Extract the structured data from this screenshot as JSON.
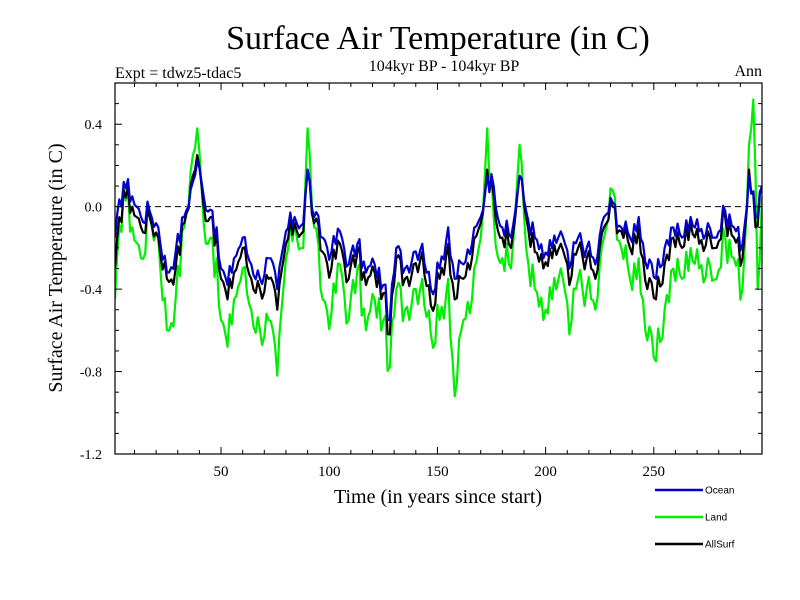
{
  "chart_data": {
    "type": "line",
    "title": "Surface Air Temperature (in C)",
    "subtitle": "104kyr BP - 104kyr BP",
    "left_label": "Expt = tdwz5-tdac5",
    "right_label": "Ann",
    "xlabel": "Time (in years since start)",
    "ylabel": "Surface Air Temperature (in C)",
    "xlim": [
      1,
      300
    ],
    "ylim": [
      -1.2,
      0.6
    ],
    "x_ticks": [
      50,
      100,
      150,
      200,
      250
    ],
    "y_ticks": [
      -1.2,
      -0.8,
      -0.4,
      0.0,
      0.4
    ],
    "y_tick_labels": [
      "-1.2",
      "-0.8",
      "-0.4",
      "0.0",
      "0.4"
    ],
    "zero_line": "dashed",
    "grid": false,
    "legend_position": "bottom-right",
    "series": [
      {
        "name": "Ocean",
        "color": "#0000cc",
        "control_points": [
          [
            1,
            -0.15
          ],
          [
            5,
            0.12
          ],
          [
            9,
            0.05
          ],
          [
            13,
            -0.05
          ],
          [
            17,
            -0.02
          ],
          [
            21,
            -0.1
          ],
          [
            25,
            -0.32
          ],
          [
            29,
            -0.22
          ],
          [
            33,
            -0.05
          ],
          [
            37,
            0.12
          ],
          [
            39,
            0.22
          ],
          [
            42,
            0.05
          ],
          [
            46,
            -0.02
          ],
          [
            50,
            -0.3
          ],
          [
            53,
            -0.38
          ],
          [
            56,
            -0.25
          ],
          [
            60,
            -0.15
          ],
          [
            64,
            -0.28
          ],
          [
            68,
            -0.35
          ],
          [
            72,
            -0.25
          ],
          [
            76,
            -0.4
          ],
          [
            80,
            -0.12
          ],
          [
            84,
            -0.05
          ],
          [
            88,
            -0.08
          ],
          [
            90,
            0.18
          ],
          [
            93,
            -0.05
          ],
          [
            97,
            -0.15
          ],
          [
            101,
            -0.22
          ],
          [
            105,
            -0.12
          ],
          [
            109,
            -0.28
          ],
          [
            113,
            -0.18
          ],
          [
            117,
            -0.32
          ],
          [
            121,
            -0.28
          ],
          [
            125,
            -0.38
          ],
          [
            128,
            -0.55
          ],
          [
            131,
            -0.2
          ],
          [
            135,
            -0.3
          ],
          [
            139,
            -0.22
          ],
          [
            143,
            -0.18
          ],
          [
            147,
            -0.4
          ],
          [
            151,
            -0.3
          ],
          [
            155,
            -0.1
          ],
          [
            158,
            -0.35
          ],
          [
            162,
            -0.28
          ],
          [
            166,
            -0.18
          ],
          [
            170,
            -0.05
          ],
          [
            173,
            0.15
          ],
          [
            176,
            0.1
          ],
          [
            180,
            -0.1
          ],
          [
            184,
            -0.15
          ],
          [
            188,
            0.15
          ],
          [
            191,
            -0.02
          ],
          [
            195,
            -0.15
          ],
          [
            199,
            -0.25
          ],
          [
            203,
            -0.2
          ],
          [
            207,
            -0.12
          ],
          [
            211,
            -0.3
          ],
          [
            215,
            -0.15
          ],
          [
            219,
            -0.2
          ],
          [
            223,
            -0.28
          ],
          [
            227,
            -0.05
          ],
          [
            231,
            0.02
          ],
          [
            235,
            -0.1
          ],
          [
            239,
            -0.15
          ],
          [
            243,
            -0.05
          ],
          [
            247,
            -0.3
          ],
          [
            251,
            -0.35
          ],
          [
            255,
            -0.2
          ],
          [
            259,
            -0.1
          ],
          [
            263,
            -0.15
          ],
          [
            267,
            -0.05
          ],
          [
            271,
            -0.12
          ],
          [
            275,
            -0.08
          ],
          [
            279,
            -0.15
          ],
          [
            283,
            -0.02
          ],
          [
            287,
            -0.1
          ],
          [
            291,
            -0.18
          ],
          [
            294,
            0.15
          ],
          [
            297,
            -0.05
          ],
          [
            300,
            0.1
          ]
        ]
      },
      {
        "name": "Land",
        "color": "#00ee00",
        "control_points": [
          [
            1,
            -0.45
          ],
          [
            5,
            0.1
          ],
          [
            9,
            -0.1
          ],
          [
            13,
            -0.25
          ],
          [
            17,
            -0.05
          ],
          [
            21,
            -0.15
          ],
          [
            25,
            -0.6
          ],
          [
            29,
            -0.45
          ],
          [
            33,
            -0.1
          ],
          [
            37,
            0.25
          ],
          [
            39,
            0.38
          ],
          [
            42,
            -0.08
          ],
          [
            46,
            -0.15
          ],
          [
            50,
            -0.55
          ],
          [
            53,
            -0.68
          ],
          [
            56,
            -0.45
          ],
          [
            60,
            -0.3
          ],
          [
            64,
            -0.5
          ],
          [
            68,
            -0.6
          ],
          [
            72,
            -0.55
          ],
          [
            76,
            -0.82
          ],
          [
            80,
            -0.25
          ],
          [
            84,
            -0.08
          ],
          [
            88,
            -0.2
          ],
          [
            90,
            0.38
          ],
          [
            93,
            -0.1
          ],
          [
            97,
            -0.45
          ],
          [
            101,
            -0.52
          ],
          [
            105,
            -0.28
          ],
          [
            109,
            -0.55
          ],
          [
            113,
            -0.3
          ],
          [
            117,
            -0.6
          ],
          [
            121,
            -0.45
          ],
          [
            125,
            -0.55
          ],
          [
            128,
            -0.78
          ],
          [
            131,
            -0.4
          ],
          [
            135,
            -0.5
          ],
          [
            139,
            -0.4
          ],
          [
            143,
            -0.35
          ],
          [
            147,
            -0.62
          ],
          [
            151,
            -0.55
          ],
          [
            155,
            -0.35
          ],
          [
            158,
            -0.92
          ],
          [
            162,
            -0.55
          ],
          [
            166,
            -0.45
          ],
          [
            170,
            -0.15
          ],
          [
            173,
            0.38
          ],
          [
            176,
            -0.05
          ],
          [
            180,
            -0.25
          ],
          [
            184,
            -0.3
          ],
          [
            188,
            0.3
          ],
          [
            191,
            -0.2
          ],
          [
            195,
            -0.4
          ],
          [
            199,
            -0.55
          ],
          [
            203,
            -0.45
          ],
          [
            207,
            -0.3
          ],
          [
            211,
            -0.62
          ],
          [
            215,
            -0.35
          ],
          [
            219,
            -0.4
          ],
          [
            223,
            -0.5
          ],
          [
            227,
            -0.15
          ],
          [
            231,
            0.08
          ],
          [
            235,
            -0.2
          ],
          [
            239,
            -0.35
          ],
          [
            243,
            -0.25
          ],
          [
            247,
            -0.65
          ],
          [
            251,
            -0.75
          ],
          [
            255,
            -0.5
          ],
          [
            259,
            -0.3
          ],
          [
            263,
            -0.35
          ],
          [
            267,
            -0.2
          ],
          [
            271,
            -0.3
          ],
          [
            275,
            -0.25
          ],
          [
            279,
            -0.35
          ],
          [
            283,
            -0.15
          ],
          [
            287,
            -0.25
          ],
          [
            291,
            -0.4
          ],
          [
            294,
            0.3
          ],
          [
            296,
            0.52
          ],
          [
            298,
            -0.4
          ],
          [
            300,
            0.05
          ]
        ]
      },
      {
        "name": "AllSurf",
        "color": "#000000",
        "control_points": [
          [
            1,
            -0.3
          ],
          [
            5,
            0.08
          ],
          [
            9,
            0.0
          ],
          [
            13,
            -0.1
          ],
          [
            17,
            -0.05
          ],
          [
            21,
            -0.15
          ],
          [
            25,
            -0.35
          ],
          [
            29,
            -0.3
          ],
          [
            33,
            -0.08
          ],
          [
            37,
            0.15
          ],
          [
            39,
            0.25
          ],
          [
            42,
            0.0
          ],
          [
            46,
            -0.05
          ],
          [
            50,
            -0.35
          ],
          [
            53,
            -0.45
          ],
          [
            56,
            -0.32
          ],
          [
            60,
            -0.2
          ],
          [
            64,
            -0.35
          ],
          [
            68,
            -0.4
          ],
          [
            72,
            -0.35
          ],
          [
            76,
            -0.5
          ],
          [
            80,
            -0.18
          ],
          [
            84,
            -0.08
          ],
          [
            88,
            -0.12
          ],
          [
            90,
            0.18
          ],
          [
            93,
            -0.08
          ],
          [
            97,
            -0.22
          ],
          [
            101,
            -0.3
          ],
          [
            105,
            -0.18
          ],
          [
            109,
            -0.35
          ],
          [
            113,
            -0.22
          ],
          [
            117,
            -0.38
          ],
          [
            121,
            -0.32
          ],
          [
            125,
            -0.42
          ],
          [
            128,
            -0.62
          ],
          [
            131,
            -0.25
          ],
          [
            135,
            -0.35
          ],
          [
            139,
            -0.28
          ],
          [
            143,
            -0.22
          ],
          [
            147,
            -0.48
          ],
          [
            151,
            -0.35
          ],
          [
            155,
            -0.18
          ],
          [
            158,
            -0.45
          ],
          [
            162,
            -0.35
          ],
          [
            166,
            -0.25
          ],
          [
            170,
            -0.08
          ],
          [
            173,
            0.18
          ],
          [
            176,
            0.05
          ],
          [
            180,
            -0.15
          ],
          [
            184,
            -0.2
          ],
          [
            188,
            0.15
          ],
          [
            191,
            -0.05
          ],
          [
            195,
            -0.22
          ],
          [
            199,
            -0.3
          ],
          [
            203,
            -0.25
          ],
          [
            207,
            -0.18
          ],
          [
            211,
            -0.38
          ],
          [
            215,
            -0.2
          ],
          [
            219,
            -0.25
          ],
          [
            223,
            -0.35
          ],
          [
            227,
            -0.1
          ],
          [
            231,
            0.0
          ],
          [
            235,
            -0.12
          ],
          [
            239,
            -0.2
          ],
          [
            243,
            -0.1
          ],
          [
            247,
            -0.4
          ],
          [
            251,
            -0.45
          ],
          [
            255,
            -0.28
          ],
          [
            259,
            -0.15
          ],
          [
            263,
            -0.2
          ],
          [
            267,
            -0.08
          ],
          [
            271,
            -0.18
          ],
          [
            275,
            -0.12
          ],
          [
            279,
            -0.2
          ],
          [
            283,
            -0.05
          ],
          [
            287,
            -0.15
          ],
          [
            291,
            -0.25
          ],
          [
            294,
            0.18
          ],
          [
            297,
            -0.1
          ],
          [
            300,
            0.1
          ]
        ]
      }
    ]
  }
}
